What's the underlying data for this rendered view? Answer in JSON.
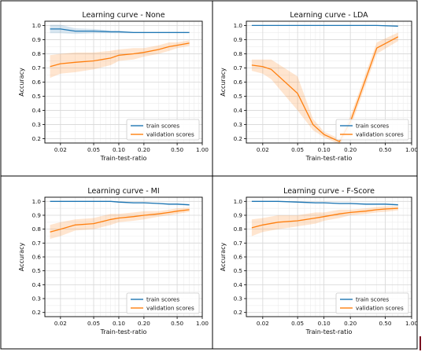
{
  "colors": {
    "train": "#1f77b4",
    "validation": "#ff7f0e",
    "frame": "#000000",
    "grid": "#d8d8d8"
  },
  "chart_data": [
    {
      "type": "line",
      "title": "Learning curve - None",
      "xlabel": "Train-test-ratio",
      "ylabel": "Accuracy",
      "xscale": "log",
      "xlim": [
        0.013,
        1.0
      ],
      "ylim": [
        0.17,
        1.03
      ],
      "xticks": [
        "0.02",
        "0.05",
        "0.10",
        "0.20",
        "0.50",
        "1.00"
      ],
      "yticks": [
        "0.2",
        "0.3",
        "0.4",
        "0.5",
        "0.6",
        "0.7",
        "0.8",
        "0.9",
        "1.0"
      ],
      "grid": true,
      "legend": "lower right",
      "x": [
        0.015,
        0.02,
        0.03,
        0.05,
        0.08,
        0.1,
        0.15,
        0.2,
        0.3,
        0.4,
        0.5,
        0.7
      ],
      "series": [
        {
          "name": "train scores",
          "values": [
            0.975,
            0.975,
            0.96,
            0.96,
            0.955,
            0.955,
            0.95,
            0.95,
            0.95,
            0.95,
            0.95,
            0.95
          ],
          "band": [
            0.03,
            0.03,
            0.02,
            0.015,
            0.01,
            0.01,
            0.005,
            0.005,
            0.005,
            0.005,
            0.005,
            0.005
          ]
        },
        {
          "name": "validation scores",
          "values": [
            0.71,
            0.73,
            0.74,
            0.75,
            0.77,
            0.79,
            0.8,
            0.81,
            0.83,
            0.85,
            0.86,
            0.875
          ],
          "band": [
            0.08,
            0.07,
            0.07,
            0.06,
            0.05,
            0.04,
            0.04,
            0.03,
            0.03,
            0.03,
            0.02,
            0.02
          ]
        }
      ]
    },
    {
      "type": "line",
      "title": "Learning curve - LDA",
      "xlabel": "Train-test-ratio",
      "ylabel": "Accuracy",
      "xscale": "log",
      "xlim": [
        0.013,
        1.0
      ],
      "ylim": [
        0.17,
        1.03
      ],
      "xticks": [
        "0.02",
        "0.05",
        "0.10",
        "0.20",
        "0.50",
        "1.00"
      ],
      "yticks": [
        "0.2",
        "0.3",
        "0.4",
        "0.5",
        "0.6",
        "0.7",
        "0.8",
        "0.9",
        "1.0"
      ],
      "grid": true,
      "legend": "lower right",
      "x": [
        0.015,
        0.02,
        0.025,
        0.05,
        0.075,
        0.1,
        0.15,
        0.2,
        0.4,
        0.7
      ],
      "series": [
        {
          "name": "train scores",
          "values": [
            1.0,
            1.0,
            1.0,
            1.0,
            1.0,
            1.0,
            1.0,
            1.0,
            1.0,
            0.995
          ],
          "band": [
            0,
            0,
            0,
            0,
            0,
            0,
            0,
            0,
            0,
            0
          ]
        },
        {
          "name": "validation scores",
          "values": [
            0.72,
            0.71,
            0.69,
            0.52,
            0.3,
            0.23,
            0.18,
            0.32,
            0.84,
            0.92
          ],
          "band": [
            0.04,
            0.05,
            0.07,
            0.12,
            0.04,
            0.02,
            0.02,
            0.04,
            0.04,
            0.03
          ]
        }
      ]
    },
    {
      "type": "line",
      "title": "Learning curve - MI",
      "xlabel": "Train-test-ratio",
      "ylabel": "Accuracy",
      "xscale": "log",
      "xlim": [
        0.013,
        1.0
      ],
      "ylim": [
        0.17,
        1.03
      ],
      "xticks": [
        "0.02",
        "0.05",
        "0.10",
        "0.20",
        "0.50",
        "1.00"
      ],
      "yticks": [
        "0.2",
        "0.3",
        "0.4",
        "0.5",
        "0.6",
        "0.7",
        "0.8",
        "0.9",
        "1.0"
      ],
      "grid": true,
      "legend": "lower right",
      "x": [
        0.015,
        0.02,
        0.03,
        0.05,
        0.08,
        0.1,
        0.15,
        0.2,
        0.3,
        0.4,
        0.5,
        0.7
      ],
      "series": [
        {
          "name": "train scores",
          "values": [
            1.0,
            1.0,
            1.0,
            1.0,
            1.0,
            0.995,
            0.99,
            0.99,
            0.985,
            0.98,
            0.98,
            0.975
          ],
          "band": [
            0,
            0,
            0,
            0,
            0,
            0.005,
            0.005,
            0.005,
            0.005,
            0.005,
            0.005,
            0.005
          ]
        },
        {
          "name": "validation scores",
          "values": [
            0.78,
            0.8,
            0.83,
            0.84,
            0.87,
            0.88,
            0.89,
            0.9,
            0.91,
            0.92,
            0.93,
            0.94
          ],
          "band": [
            0.05,
            0.05,
            0.04,
            0.04,
            0.04,
            0.03,
            0.03,
            0.03,
            0.02,
            0.02,
            0.02,
            0.015
          ]
        }
      ]
    },
    {
      "type": "line",
      "title": "Learning curve - F-Score",
      "xlabel": "Train-test-ratio",
      "ylabel": "Accuracy",
      "xscale": "log",
      "xlim": [
        0.013,
        1.0
      ],
      "ylim": [
        0.17,
        1.03
      ],
      "xticks": [
        "0.02",
        "0.05",
        "0.10",
        "0.20",
        "0.50",
        "1.00"
      ],
      "yticks": [
        "0.2",
        "0.3",
        "0.4",
        "0.5",
        "0.6",
        "0.7",
        "0.8",
        "0.9",
        "1.0"
      ],
      "grid": true,
      "legend": "lower right",
      "x": [
        0.015,
        0.02,
        0.03,
        0.05,
        0.08,
        0.1,
        0.15,
        0.2,
        0.3,
        0.4,
        0.5,
        0.7
      ],
      "series": [
        {
          "name": "train scores",
          "values": [
            1.0,
            1.0,
            1.0,
            0.995,
            0.99,
            0.99,
            0.985,
            0.985,
            0.98,
            0.98,
            0.98,
            0.975
          ],
          "band": [
            0,
            0,
            0,
            0.005,
            0.005,
            0.005,
            0.005,
            0.005,
            0.005,
            0.005,
            0.005,
            0.005
          ]
        },
        {
          "name": "validation scores",
          "values": [
            0.81,
            0.83,
            0.85,
            0.86,
            0.88,
            0.89,
            0.91,
            0.92,
            0.93,
            0.94,
            0.945,
            0.95
          ],
          "band": [
            0.06,
            0.05,
            0.05,
            0.04,
            0.04,
            0.03,
            0.03,
            0.02,
            0.02,
            0.02,
            0.02,
            0.015
          ]
        }
      ]
    }
  ]
}
